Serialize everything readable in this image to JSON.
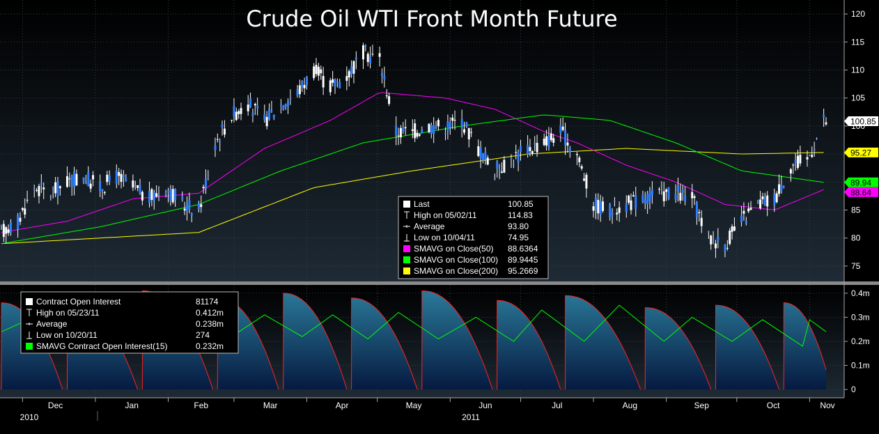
{
  "chart_data": [
    {
      "type": "candlestick",
      "title": "Crude Oil WTI Front Month Future",
      "x_range": [
        "2010-11-22",
        "2011-11-08"
      ],
      "y_axis": {
        "position": "right",
        "ylim": [
          73,
          121
        ],
        "ticks": [
          75,
          80,
          85,
          90,
          95,
          100,
          105,
          110,
          115,
          120
        ]
      },
      "x_ticks": [
        "Dec",
        "Jan",
        "Feb",
        "Mar",
        "Apr",
        "May",
        "Jun",
        "Jul",
        "Aug",
        "Sep",
        "Oct",
        "Nov"
      ],
      "year_labels": [
        "2010",
        "2011"
      ],
      "grid": true,
      "legend": {
        "placement": "bottom-center",
        "entries": [
          {
            "label": "Last",
            "value": "100.85",
            "color": "#ffffff"
          },
          {
            "label": "High on 05/02/11",
            "value": "114.83",
            "color": "#ffffff"
          },
          {
            "label": "Average",
            "value": "93.80",
            "color": "#ffffff"
          },
          {
            "label": "Low on 10/04/11",
            "value": "74.95",
            "color": "#ffffff"
          },
          {
            "label": "SMAVG on Close(50)",
            "value": "88.6364",
            "color": "#ff00ff"
          },
          {
            "label": "SMAVG on Close(100)",
            "value": "89.9445",
            "color": "#00ff00"
          },
          {
            "label": "SMAVG on Close(200)",
            "value": "95.2669",
            "color": "#ffff00"
          }
        ]
      },
      "last_labels": [
        {
          "text": "100.85",
          "value": 100.85,
          "bg": "#ffffff",
          "fg": "#000000"
        },
        {
          "text": "95.27",
          "value": 95.27,
          "bg": "#ffff00",
          "fg": "#000000"
        },
        {
          "text": "89.94",
          "value": 89.94,
          "bg": "#00ff00",
          "fg": "#000000"
        },
        {
          "text": "88.64",
          "value": 88.64,
          "bg": "#ff00ff",
          "fg": "#000000"
        }
      ],
      "close_series": [
        [
          "2010-11-22",
          81
        ],
        [
          "2010-11-29",
          83
        ],
        [
          "2010-12-06",
          89
        ],
        [
          "2010-12-13",
          88
        ],
        [
          "2010-12-20",
          90
        ],
        [
          "2010-12-27",
          91
        ],
        [
          "2011-01-03",
          89
        ],
        [
          "2011-01-10",
          91
        ],
        [
          "2011-01-17",
          89
        ],
        [
          "2011-01-24",
          87
        ],
        [
          "2011-01-31",
          89
        ],
        [
          "2011-02-07",
          86
        ],
        [
          "2011-02-14",
          85
        ],
        [
          "2011-02-21",
          97
        ],
        [
          "2011-02-28",
          102
        ],
        [
          "2011-03-07",
          104
        ],
        [
          "2011-03-14",
          101
        ],
        [
          "2011-03-21",
          104
        ],
        [
          "2011-03-28",
          106
        ],
        [
          "2011-04-04",
          110
        ],
        [
          "2011-04-11",
          107
        ],
        [
          "2011-04-18",
          109
        ],
        [
          "2011-04-25",
          113
        ],
        [
          "2011-05-02",
          112
        ],
        [
          "2011-05-09",
          99
        ],
        [
          "2011-05-16",
          99
        ],
        [
          "2011-05-23",
          100
        ],
        [
          "2011-05-30",
          100
        ],
        [
          "2011-06-06",
          101
        ],
        [
          "2011-06-13",
          96
        ],
        [
          "2011-06-20",
          92
        ],
        [
          "2011-06-27",
          94
        ],
        [
          "2011-07-04",
          96
        ],
        [
          "2011-07-11",
          97
        ],
        [
          "2011-07-18",
          99
        ],
        [
          "2011-07-25",
          95
        ],
        [
          "2011-08-01",
          86
        ],
        [
          "2011-08-08",
          85
        ],
        [
          "2011-08-15",
          86
        ],
        [
          "2011-08-22",
          87
        ],
        [
          "2011-08-29",
          88
        ],
        [
          "2011-09-05",
          88
        ],
        [
          "2011-09-12",
          87
        ],
        [
          "2011-09-19",
          80
        ],
        [
          "2011-09-26",
          79
        ],
        [
          "2011-10-03",
          83
        ],
        [
          "2011-10-10",
          86
        ],
        [
          "2011-10-17",
          87
        ],
        [
          "2011-10-24",
          93
        ],
        [
          "2011-10-31",
          94
        ],
        [
          "2011-11-07",
          100.85
        ]
      ],
      "ma50_series": [
        [
          "2010-11-22",
          81
        ],
        [
          "2010-12-20",
          83
        ],
        [
          "2011-01-17",
          87
        ],
        [
          "2011-02-14",
          88
        ],
        [
          "2011-03-14",
          96
        ],
        [
          "2011-04-11",
          101
        ],
        [
          "2011-05-02",
          106
        ],
        [
          "2011-05-30",
          105
        ],
        [
          "2011-06-20",
          103
        ],
        [
          "2011-07-11",
          99
        ],
        [
          "2011-07-25",
          97
        ],
        [
          "2011-08-15",
          93
        ],
        [
          "2011-09-05",
          90
        ],
        [
          "2011-09-26",
          86
        ],
        [
          "2011-10-17",
          85
        ],
        [
          "2011-11-07",
          88.64
        ]
      ],
      "ma100_series": [
        [
          "2010-11-22",
          79
        ],
        [
          "2011-01-03",
          82
        ],
        [
          "2011-02-14",
          86
        ],
        [
          "2011-03-21",
          92
        ],
        [
          "2011-04-25",
          97
        ],
        [
          "2011-06-06",
          100
        ],
        [
          "2011-07-11",
          102
        ],
        [
          "2011-08-08",
          101
        ],
        [
          "2011-09-05",
          97
        ],
        [
          "2011-10-03",
          92
        ],
        [
          "2011-11-07",
          89.94
        ]
      ],
      "ma200_series": [
        [
          "2010-11-22",
          79
        ],
        [
          "2011-02-14",
          81
        ],
        [
          "2011-04-04",
          89
        ],
        [
          "2011-05-16",
          92
        ],
        [
          "2011-07-04",
          95
        ],
        [
          "2011-08-15",
          96
        ],
        [
          "2011-10-03",
          95
        ],
        [
          "2011-11-07",
          95.27
        ]
      ]
    },
    {
      "type": "area",
      "y_axis": {
        "position": "right",
        "ylim": [
          -0.02,
          0.42
        ],
        "ticks": [
          0,
          0.1,
          0.2,
          0.3,
          0.4
        ],
        "tick_labels": [
          "0",
          "0.1m",
          "0.2m",
          "0.3m",
          "0.4m"
        ]
      },
      "legend": {
        "placement": "top-left",
        "entries": [
          {
            "label": "Contract Open Interest",
            "value": "81174",
            "color": "#ffffff"
          },
          {
            "label": "High on 05/23/11",
            "value": "0.412m",
            "color": "#ffffff"
          },
          {
            "label": "Average",
            "value": "0.238m",
            "color": "#ffffff"
          },
          {
            "label": "Low on 10/20/11",
            "value": "274",
            "color": "#ffffff"
          },
          {
            "label": "SMAVG Contract Open Interest(15)",
            "value": "0.232m",
            "color": "#00ff00"
          }
        ]
      },
      "open_interest_peaks": [
        [
          "2010-11-22",
          0.36
        ],
        [
          "2010-12-20",
          0.38
        ],
        [
          "2011-01-21",
          0.41
        ],
        [
          "2011-02-22",
          0.38
        ],
        [
          "2011-03-22",
          0.4
        ],
        [
          "2011-04-20",
          0.38
        ],
        [
          "2011-05-20",
          0.41
        ],
        [
          "2011-06-21",
          0.37
        ],
        [
          "2011-07-20",
          0.39
        ],
        [
          "2011-08-23",
          0.34
        ],
        [
          "2011-09-22",
          0.35
        ],
        [
          "2011-10-21",
          0.36
        ]
      ],
      "roll_dates": [
        "2010-12-18",
        "2011-01-19",
        "2011-02-20",
        "2011-03-20",
        "2011-04-18",
        "2011-05-18",
        "2011-06-19",
        "2011-07-18",
        "2011-08-21",
        "2011-09-20",
        "2011-10-19",
        "2011-11-08"
      ],
      "last_value": 0.0812,
      "sma15_series": [
        [
          "2010-11-22",
          0.24
        ],
        [
          "2010-12-08",
          0.31
        ],
        [
          "2010-12-26",
          0.21
        ],
        [
          "2011-01-11",
          0.29
        ],
        [
          "2011-01-27",
          0.22
        ],
        [
          "2011-02-11",
          0.34
        ],
        [
          "2011-02-28",
          0.22
        ],
        [
          "2011-03-14",
          0.31
        ],
        [
          "2011-03-30",
          0.22
        ],
        [
          "2011-04-12",
          0.31
        ],
        [
          "2011-04-27",
          0.21
        ],
        [
          "2011-05-10",
          0.32
        ],
        [
          "2011-05-27",
          0.21
        ],
        [
          "2011-06-12",
          0.3
        ],
        [
          "2011-06-28",
          0.2
        ],
        [
          "2011-07-10",
          0.33
        ],
        [
          "2011-07-28",
          0.2
        ],
        [
          "2011-08-12",
          0.35
        ],
        [
          "2011-08-31",
          0.2
        ],
        [
          "2011-09-12",
          0.3
        ],
        [
          "2011-09-29",
          0.2
        ],
        [
          "2011-10-12",
          0.29
        ],
        [
          "2011-10-29",
          0.18
        ],
        [
          "2011-11-01",
          0.29
        ],
        [
          "2011-11-08",
          0.24
        ]
      ]
    }
  ]
}
